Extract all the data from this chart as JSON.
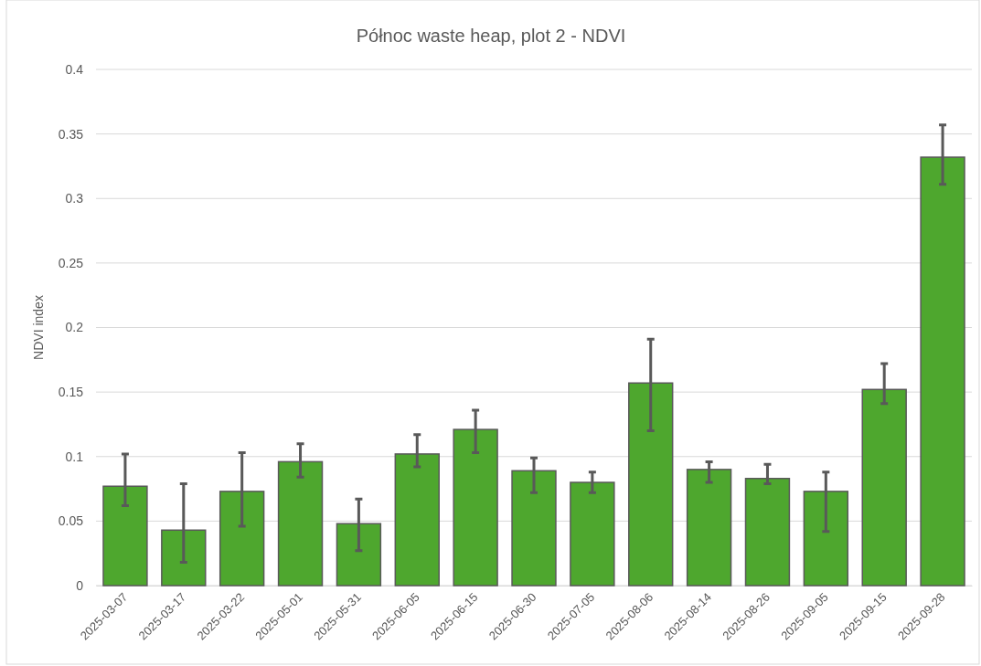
{
  "chart_data": {
    "type": "bar",
    "title": "Północ waste heap, plot 2 - NDVI",
    "ylabel": "NDVI index",
    "categories": [
      "2025-03-07",
      "2025-03-17",
      "2025-03-22",
      "2025-05-01",
      "2025-05-31",
      "2025-06-05",
      "2025-06-15",
      "2025-06-30",
      "2025-07-05",
      "2025-08-06",
      "2025-08-14",
      "2025-08-26",
      "2025-09-05",
      "2025-09-15",
      "2025-09-28"
    ],
    "values": [
      0.077,
      0.043,
      0.073,
      0.096,
      0.048,
      0.102,
      0.121,
      0.089,
      0.08,
      0.157,
      0.09,
      0.083,
      0.073,
      0.152,
      0.332
    ],
    "errors": [
      [
        0.062,
        0.102
      ],
      [
        0.018,
        0.079
      ],
      [
        0.046,
        0.103
      ],
      [
        0.084,
        0.11
      ],
      [
        0.027,
        0.067
      ],
      [
        0.092,
        0.117
      ],
      [
        0.103,
        0.136
      ],
      [
        0.072,
        0.099
      ],
      [
        0.072,
        0.088
      ],
      [
        0.12,
        0.191
      ],
      [
        0.08,
        0.096
      ],
      [
        0.079,
        0.094
      ],
      [
        0.042,
        0.088
      ],
      [
        0.141,
        0.172
      ],
      [
        0.311,
        0.357
      ]
    ],
    "color": "#4ea72e",
    "ylim": [
      0,
      0.4
    ],
    "yticks": [
      0,
      0.05,
      0.1,
      0.15,
      0.2,
      0.25,
      0.3,
      0.35,
      0.4
    ],
    "grid": "y"
  }
}
